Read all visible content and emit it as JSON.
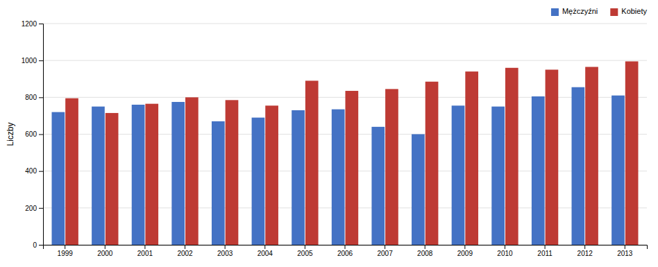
{
  "chart_data": {
    "type": "bar",
    "y_label": "Liczby",
    "categories": [
      "1999",
      "2000",
      "2001",
      "2002",
      "2003",
      "2004",
      "2005",
      "2006",
      "2007",
      "2008",
      "2009",
      "2010",
      "2011",
      "2012",
      "2013"
    ],
    "series": [
      {
        "name": "Mężczyźni",
        "color": "#4472C4",
        "values": [
          720,
          750,
          760,
          775,
          670,
          690,
          730,
          735,
          640,
          600,
          755,
          750,
          805,
          855,
          810
        ]
      },
      {
        "name": "Kobiety",
        "color": "#BE3A34",
        "values": [
          795,
          715,
          765,
          800,
          785,
          755,
          890,
          835,
          845,
          885,
          940,
          960,
          950,
          965,
          995
        ]
      }
    ],
    "ylim": [
      0,
      1200
    ],
    "yticks": [
      0,
      200,
      400,
      600,
      800,
      1000,
      1200
    ],
    "grid": true,
    "legend": "upper right"
  }
}
